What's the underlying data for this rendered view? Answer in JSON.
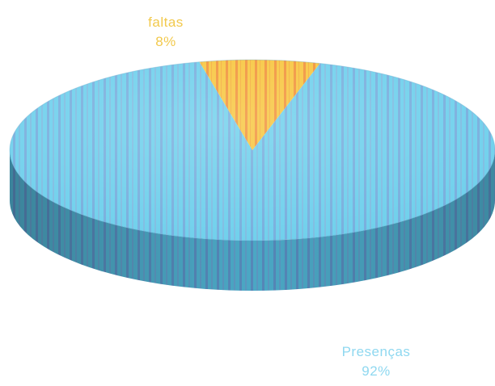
{
  "chart_data": {
    "type": "pie",
    "title": "",
    "style": "3d",
    "slices": [
      {
        "label": "faltas",
        "value": 8,
        "percent_label": "8%",
        "color": "#f5c242",
        "stripe_color": "#f08a3a",
        "label_color": "#f2c94c"
      },
      {
        "label": "Presenças",
        "value": 92,
        "percent_label": "92%",
        "color": "#6fd0ec",
        "stripe_color": "#7b9fd6",
        "label_color": "#8fd8f0"
      }
    ],
    "legend": "none"
  }
}
